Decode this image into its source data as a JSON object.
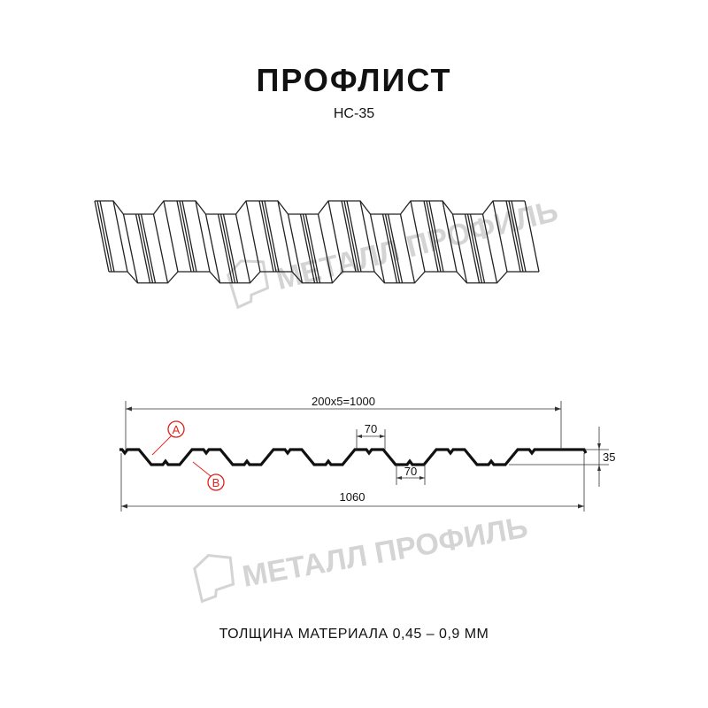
{
  "header": {
    "title": "ПРОФЛИСТ",
    "subtitle": "НС-35"
  },
  "watermark": {
    "text": "МЕТАЛЛ ПРОФИЛЬ"
  },
  "dimensions": {
    "pitch_total": "200x5=1000",
    "top_flat": "70",
    "bottom_flat": "70",
    "height": "35",
    "overall_width": "1060"
  },
  "callouts": {
    "a": "A",
    "b": "B"
  },
  "footer": {
    "thickness": "ТОЛЩИНА МАТЕРИАЛА 0,45 – 0,9 ММ"
  },
  "colors": {
    "line": "#111111",
    "callout": "#e0201b",
    "watermark": "#d4d4d4"
  }
}
